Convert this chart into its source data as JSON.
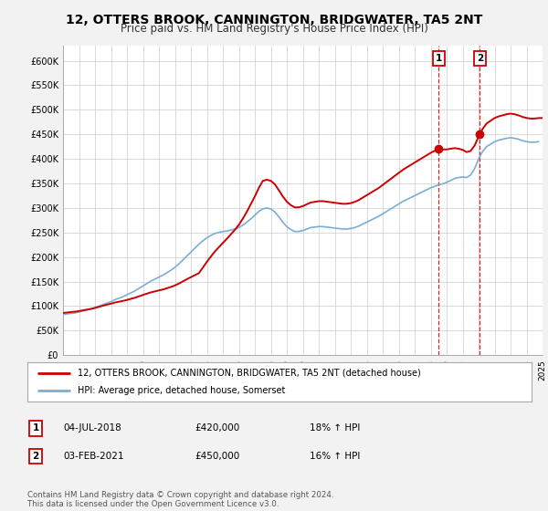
{
  "title": "12, OTTERS BROOK, CANNINGTON, BRIDGWATER, TA5 2NT",
  "subtitle": "Price paid vs. HM Land Registry's House Price Index (HPI)",
  "title_fontsize": 10,
  "subtitle_fontsize": 8.5,
  "bg_color": "#f2f2f2",
  "plot_bg_color": "#ffffff",
  "grid_color": "#cccccc",
  "ylim": [
    0,
    630000
  ],
  "yticks": [
    0,
    50000,
    100000,
    150000,
    200000,
    250000,
    300000,
    350000,
    400000,
    450000,
    500000,
    550000,
    600000
  ],
  "ytick_labels": [
    "£0",
    "£50K",
    "£100K",
    "£150K",
    "£200K",
    "£250K",
    "£300K",
    "£350K",
    "£400K",
    "£450K",
    "£500K",
    "£550K",
    "£600K"
  ],
  "xtick_years": [
    1995,
    1996,
    1997,
    1998,
    1999,
    2000,
    2001,
    2002,
    2003,
    2004,
    2005,
    2006,
    2007,
    2008,
    2009,
    2010,
    2011,
    2012,
    2013,
    2014,
    2015,
    2016,
    2017,
    2018,
    2019,
    2020,
    2021,
    2022,
    2023,
    2024,
    2025
  ],
  "line1_color": "#cc0000",
  "line2_color": "#7aaed6",
  "line1_label": "12, OTTERS BROOK, CANNINGTON, BRIDGWATER, TA5 2NT (detached house)",
  "line2_label": "HPI: Average price, detached house, Somerset",
  "event1_x": 2018.504,
  "event2_x": 2021.085,
  "event1_y": 420000,
  "event2_y": 450000,
  "event1_label": "1",
  "event2_label": "2",
  "event1_date": "04-JUL-2018",
  "event1_price": "£420,000",
  "event1_hpi": "18% ↑ HPI",
  "event2_date": "03-FEB-2021",
  "event2_price": "£450,000",
  "event2_hpi": "16% ↑ HPI",
  "footnote": "Contains HM Land Registry data © Crown copyright and database right 2024.\nThis data is licensed under the Open Government Licence v3.0.",
  "hpi_x": [
    1995.0,
    1995.25,
    1995.5,
    1995.75,
    1996.0,
    1996.25,
    1996.5,
    1996.75,
    1997.0,
    1997.25,
    1997.5,
    1997.75,
    1998.0,
    1998.25,
    1998.5,
    1998.75,
    1999.0,
    1999.25,
    1999.5,
    1999.75,
    2000.0,
    2000.25,
    2000.5,
    2000.75,
    2001.0,
    2001.25,
    2001.5,
    2001.75,
    2002.0,
    2002.25,
    2002.5,
    2002.75,
    2003.0,
    2003.25,
    2003.5,
    2003.75,
    2004.0,
    2004.25,
    2004.5,
    2004.75,
    2005.0,
    2005.25,
    2005.5,
    2005.75,
    2006.0,
    2006.25,
    2006.5,
    2006.75,
    2007.0,
    2007.25,
    2007.5,
    2007.75,
    2008.0,
    2008.25,
    2008.5,
    2008.75,
    2009.0,
    2009.25,
    2009.5,
    2009.75,
    2010.0,
    2010.25,
    2010.5,
    2010.75,
    2011.0,
    2011.25,
    2011.5,
    2011.75,
    2012.0,
    2012.25,
    2012.5,
    2012.75,
    2013.0,
    2013.25,
    2013.5,
    2013.75,
    2014.0,
    2014.25,
    2014.5,
    2014.75,
    2015.0,
    2015.25,
    2015.5,
    2015.75,
    2016.0,
    2016.25,
    2016.5,
    2016.75,
    2017.0,
    2017.25,
    2017.5,
    2017.75,
    2018.0,
    2018.25,
    2018.5,
    2018.75,
    2019.0,
    2019.25,
    2019.5,
    2019.75,
    2020.0,
    2020.25,
    2020.5,
    2020.75,
    2021.0,
    2021.25,
    2021.5,
    2021.75,
    2022.0,
    2022.25,
    2022.5,
    2022.75,
    2023.0,
    2023.25,
    2023.5,
    2023.75,
    2024.0,
    2024.25,
    2024.5,
    2024.75
  ],
  "hpi_y": [
    83000,
    84000,
    85000,
    86000,
    88000,
    90000,
    92000,
    94000,
    97000,
    100000,
    103000,
    106000,
    109000,
    113000,
    116000,
    119000,
    123000,
    127000,
    131000,
    136000,
    141000,
    146000,
    151000,
    155000,
    159000,
    163000,
    168000,
    173000,
    179000,
    186000,
    194000,
    202000,
    210000,
    218000,
    226000,
    233000,
    239000,
    244000,
    248000,
    250000,
    252000,
    253000,
    255000,
    257000,
    260000,
    265000,
    271000,
    278000,
    285000,
    293000,
    298000,
    300000,
    298000,
    292000,
    282000,
    271000,
    262000,
    256000,
    252000,
    252000,
    254000,
    257000,
    260000,
    261000,
    262000,
    262000,
    261000,
    260000,
    259000,
    258000,
    257000,
    257000,
    258000,
    260000,
    263000,
    267000,
    271000,
    275000,
    279000,
    283000,
    288000,
    293000,
    298000,
    303000,
    308000,
    313000,
    317000,
    321000,
    325000,
    329000,
    333000,
    337000,
    341000,
    344000,
    347000,
    349000,
    352000,
    356000,
    360000,
    362000,
    363000,
    362000,
    367000,
    380000,
    400000,
    415000,
    425000,
    430000,
    435000,
    438000,
    440000,
    442000,
    443000,
    442000,
    440000,
    437000,
    435000,
    434000,
    434000,
    435000
  ],
  "price_x": [
    1995.5,
    1997.75,
    2000.5,
    2003.5,
    2007.5,
    2018.504,
    2021.085
  ],
  "price_y": [
    88000,
    103000,
    128000,
    167000,
    355000,
    420000,
    450000
  ]
}
